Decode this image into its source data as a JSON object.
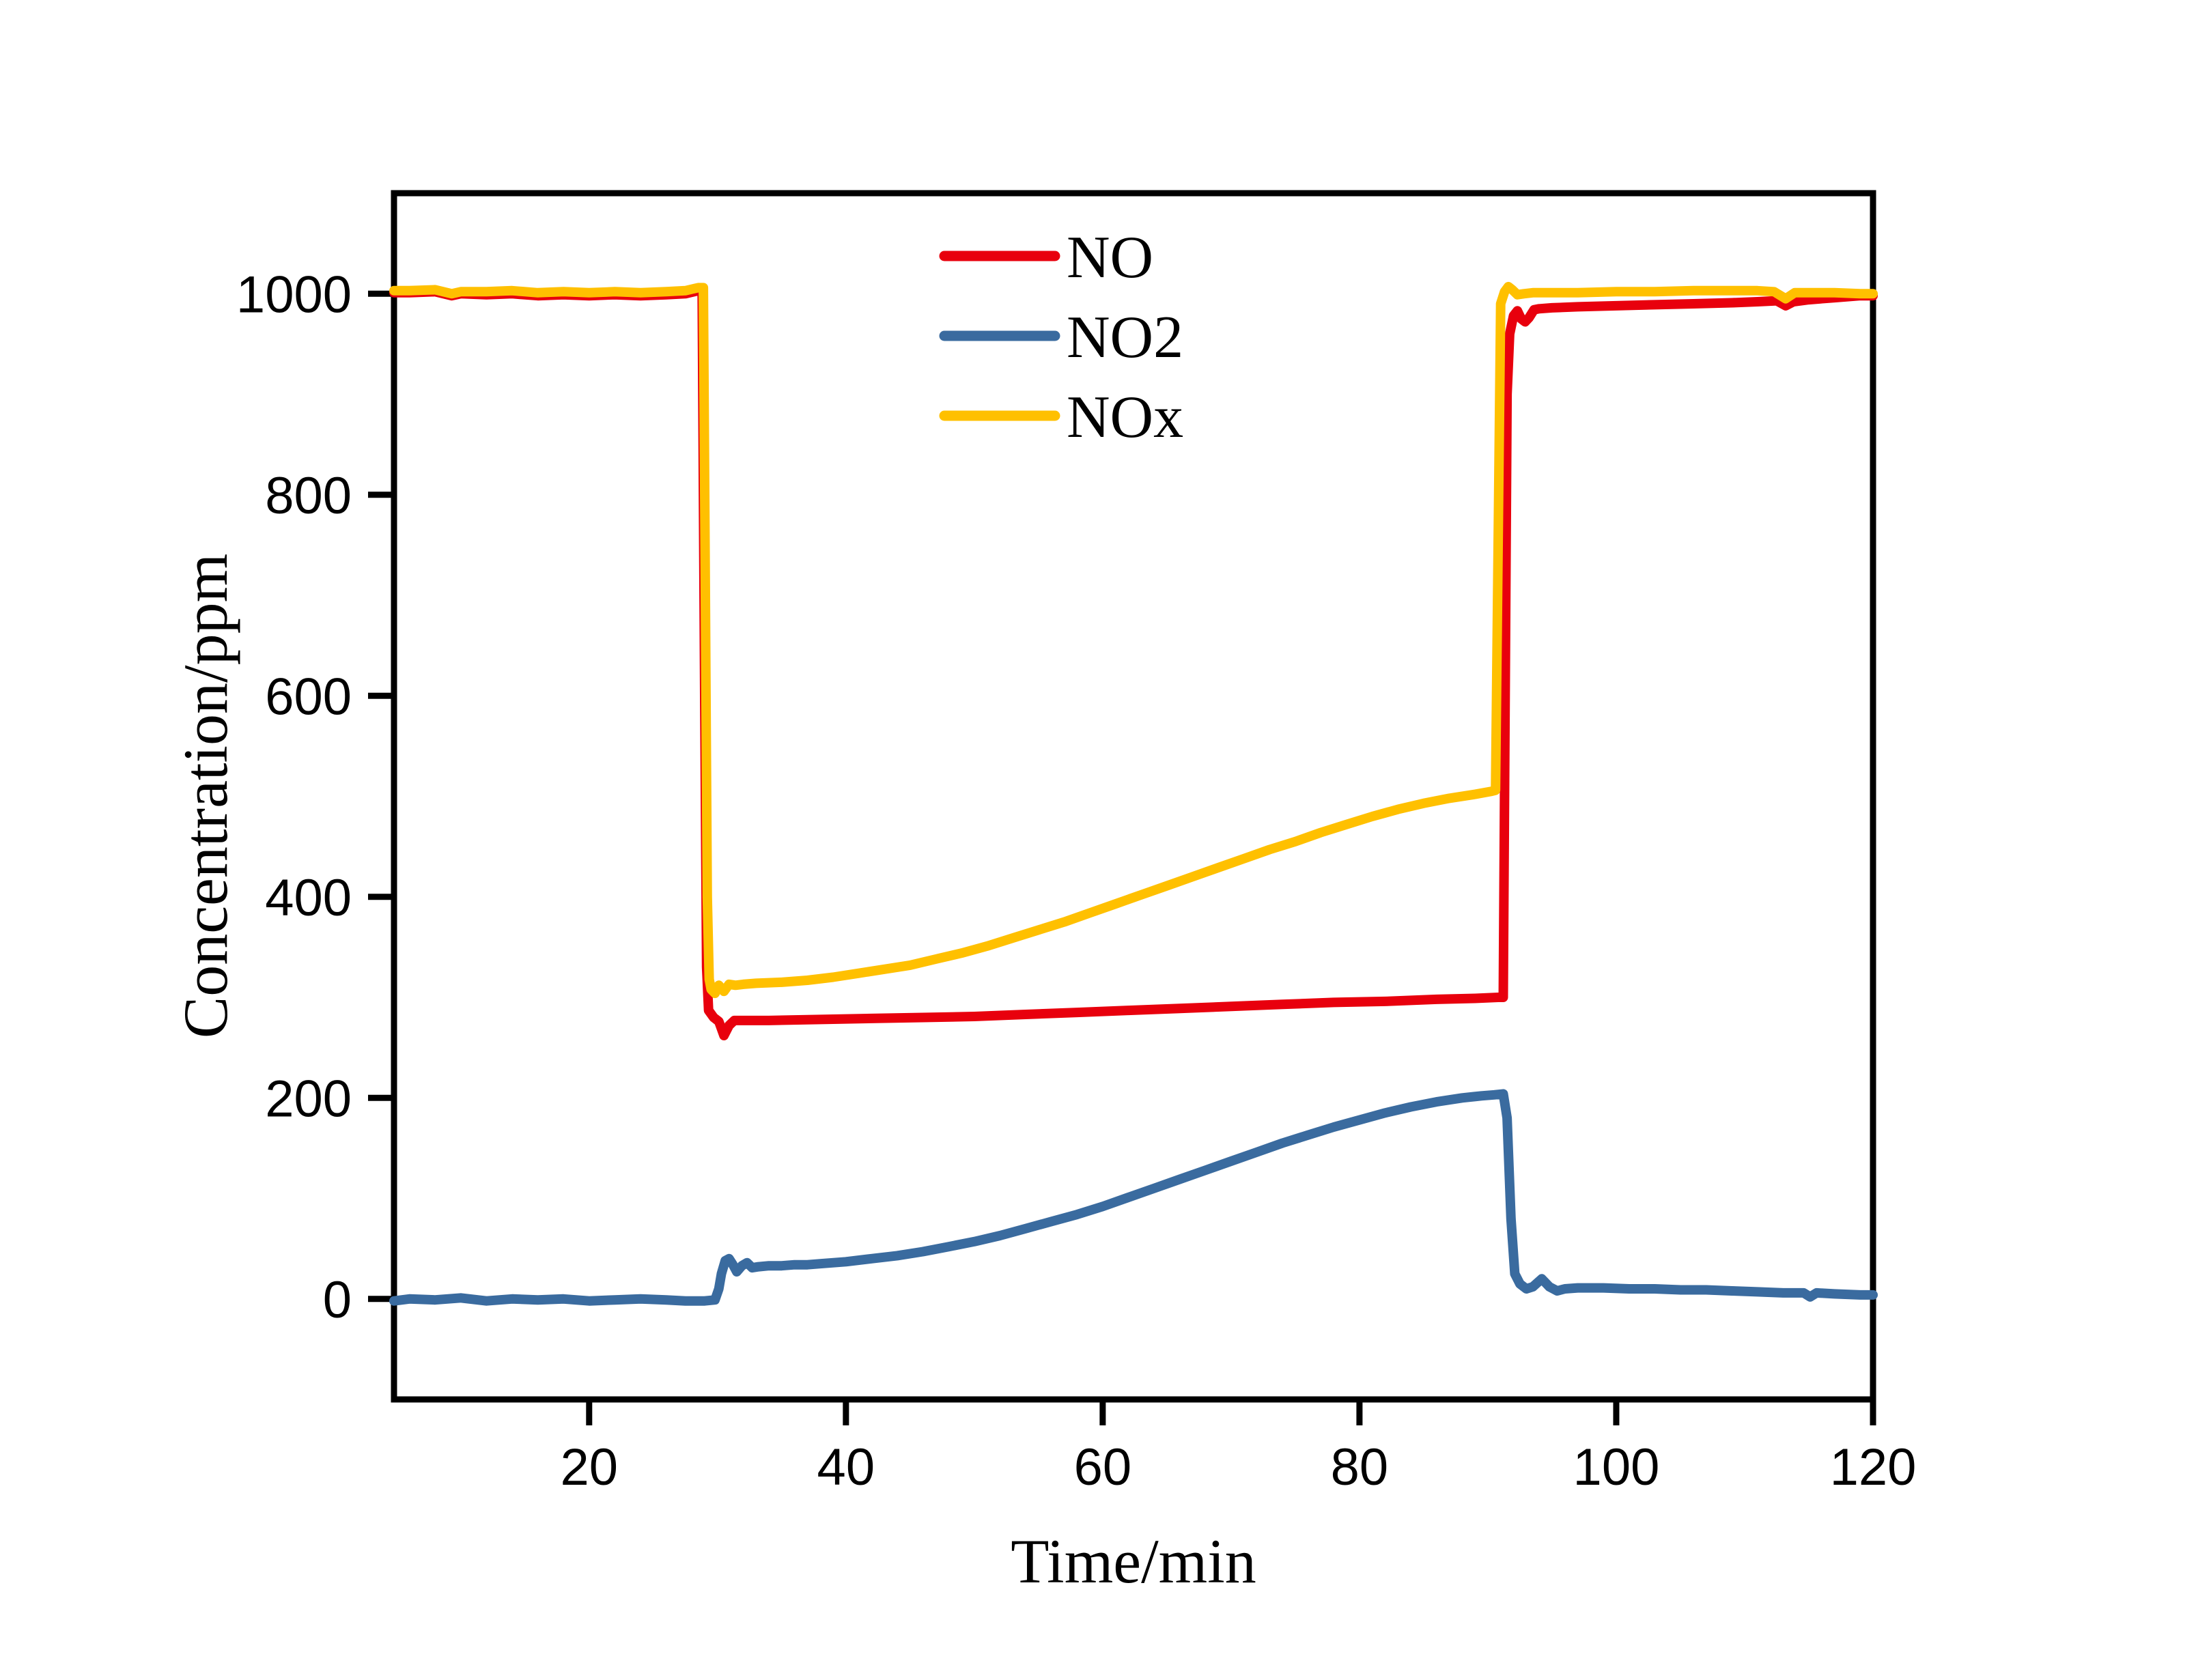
{
  "figure": {
    "background": "#ffffff",
    "frame_color": "#000000"
  },
  "chart_data": {
    "type": "line",
    "title": "",
    "xlabel": "Time/min",
    "ylabel": "Concentration/ppm",
    "x_range": [
      4.8,
      120
    ],
    "y_range": [
      -100,
      1100
    ],
    "x_ticks": [
      20,
      40,
      60,
      80,
      100,
      120
    ],
    "y_ticks": [
      0,
      200,
      400,
      600,
      800,
      1000
    ],
    "grid": false,
    "legend_position": "top-center-inside",
    "series": [
      {
        "name": "NO",
        "color": "#E8000D",
        "points": [
          [
            4.8,
            1001
          ],
          [
            6,
            1001
          ],
          [
            8,
            1002
          ],
          [
            9.3,
            998
          ],
          [
            10,
            1000
          ],
          [
            12,
            999
          ],
          [
            14,
            1000
          ],
          [
            16,
            998
          ],
          [
            18,
            999
          ],
          [
            20,
            998
          ],
          [
            22,
            999
          ],
          [
            24,
            998
          ],
          [
            26,
            999
          ],
          [
            27.5,
            1000
          ],
          [
            28.5,
            1003
          ],
          [
            28.8,
            1003
          ],
          [
            29.0,
            600
          ],
          [
            29.15,
            330
          ],
          [
            29.3,
            287
          ],
          [
            29.7,
            280
          ],
          [
            30.1,
            276
          ],
          [
            30.5,
            262
          ],
          [
            30.9,
            272
          ],
          [
            31.3,
            277
          ],
          [
            32,
            277
          ],
          [
            34,
            277
          ],
          [
            38,
            278
          ],
          [
            42,
            279
          ],
          [
            46,
            280
          ],
          [
            50,
            281
          ],
          [
            54,
            283
          ],
          [
            58,
            285
          ],
          [
            62,
            287
          ],
          [
            66,
            289
          ],
          [
            70,
            291
          ],
          [
            74,
            293
          ],
          [
            78,
            295
          ],
          [
            82,
            296
          ],
          [
            86,
            298
          ],
          [
            89,
            299
          ],
          [
            90.8,
            300
          ],
          [
            91.2,
            300
          ],
          [
            91.35,
            600
          ],
          [
            91.5,
            900
          ],
          [
            91.7,
            960
          ],
          [
            92,
            978
          ],
          [
            92.3,
            983
          ],
          [
            92.6,
            975
          ],
          [
            92.9,
            972
          ],
          [
            93.2,
            976
          ],
          [
            93.6,
            984
          ],
          [
            94,
            985
          ],
          [
            95,
            986
          ],
          [
            97,
            987
          ],
          [
            100,
            988
          ],
          [
            103,
            989
          ],
          [
            106,
            990
          ],
          [
            109,
            991
          ],
          [
            111,
            992
          ],
          [
            112.5,
            993
          ],
          [
            113.2,
            988
          ],
          [
            113.8,
            992
          ],
          [
            115,
            994
          ],
          [
            117,
            996
          ],
          [
            119,
            998
          ],
          [
            120,
            998
          ]
        ]
      },
      {
        "name": "NO2",
        "color": "#3A6B9F",
        "points": [
          [
            4.8,
            -2
          ],
          [
            6,
            0
          ],
          [
            8,
            -1
          ],
          [
            10,
            1
          ],
          [
            12,
            -2
          ],
          [
            14,
            0
          ],
          [
            16,
            -1
          ],
          [
            18,
            0
          ],
          [
            20,
            -2
          ],
          [
            22,
            -1
          ],
          [
            24,
            0
          ],
          [
            26,
            -1
          ],
          [
            27.5,
            -2
          ],
          [
            29,
            -2
          ],
          [
            29.8,
            -1
          ],
          [
            30.1,
            10
          ],
          [
            30.3,
            25
          ],
          [
            30.6,
            38
          ],
          [
            30.9,
            40
          ],
          [
            31.2,
            34
          ],
          [
            31.5,
            27
          ],
          [
            31.9,
            33
          ],
          [
            32.3,
            36
          ],
          [
            32.7,
            31
          ],
          [
            33.2,
            32
          ],
          [
            34,
            33
          ],
          [
            35,
            33
          ],
          [
            36,
            34
          ],
          [
            37,
            34
          ],
          [
            38,
            35
          ],
          [
            40,
            37
          ],
          [
            42,
            40
          ],
          [
            44,
            43
          ],
          [
            46,
            47
          ],
          [
            48,
            52
          ],
          [
            50,
            57
          ],
          [
            52,
            63
          ],
          [
            54,
            70
          ],
          [
            56,
            77
          ],
          [
            58,
            84
          ],
          [
            60,
            92
          ],
          [
            62,
            101
          ],
          [
            64,
            110
          ],
          [
            66,
            119
          ],
          [
            68,
            128
          ],
          [
            70,
            137
          ],
          [
            72,
            146
          ],
          [
            74,
            155
          ],
          [
            76,
            163
          ],
          [
            78,
            171
          ],
          [
            80,
            178
          ],
          [
            82,
            185
          ],
          [
            84,
            191
          ],
          [
            86,
            196
          ],
          [
            88,
            200
          ],
          [
            89.5,
            202
          ],
          [
            90.5,
            203
          ],
          [
            91.2,
            204
          ],
          [
            91.5,
            180
          ],
          [
            91.8,
            80
          ],
          [
            92.1,
            25
          ],
          [
            92.5,
            15
          ],
          [
            93,
            10
          ],
          [
            93.5,
            12
          ],
          [
            94.2,
            20
          ],
          [
            94.8,
            12
          ],
          [
            95.4,
            8
          ],
          [
            96,
            10
          ],
          [
            97,
            11
          ],
          [
            99,
            11
          ],
          [
            101,
            10
          ],
          [
            103,
            10
          ],
          [
            105,
            9
          ],
          [
            107,
            9
          ],
          [
            109,
            8
          ],
          [
            111,
            7
          ],
          [
            113,
            6
          ],
          [
            114.6,
            6
          ],
          [
            115.1,
            2
          ],
          [
            115.6,
            6
          ],
          [
            117,
            5
          ],
          [
            119,
            4
          ],
          [
            120,
            4
          ]
        ]
      },
      {
        "name": "NOx",
        "color": "#FFC000",
        "points": [
          [
            4.8,
            1003
          ],
          [
            6,
            1003
          ],
          [
            8,
            1004
          ],
          [
            9.3,
            1000
          ],
          [
            10,
            1002
          ],
          [
            12,
            1002
          ],
          [
            14,
            1003
          ],
          [
            16,
            1001
          ],
          [
            18,
            1002
          ],
          [
            20,
            1001
          ],
          [
            22,
            1002
          ],
          [
            24,
            1001
          ],
          [
            26,
            1002
          ],
          [
            27.5,
            1003
          ],
          [
            28.5,
            1006
          ],
          [
            28.9,
            1006
          ],
          [
            29.05,
            700
          ],
          [
            29.2,
            400
          ],
          [
            29.35,
            318
          ],
          [
            29.5,
            308
          ],
          [
            29.8,
            304
          ],
          [
            30.1,
            312
          ],
          [
            30.5,
            306
          ],
          [
            30.9,
            313
          ],
          [
            31.4,
            312
          ],
          [
            32,
            313
          ],
          [
            33,
            314
          ],
          [
            35,
            315
          ],
          [
            37,
            317
          ],
          [
            39,
            320
          ],
          [
            41,
            324
          ],
          [
            43,
            328
          ],
          [
            45,
            332
          ],
          [
            47,
            338
          ],
          [
            49,
            344
          ],
          [
            51,
            351
          ],
          [
            53,
            359
          ],
          [
            55,
            367
          ],
          [
            57,
            375
          ],
          [
            59,
            384
          ],
          [
            61,
            393
          ],
          [
            63,
            402
          ],
          [
            65,
            411
          ],
          [
            67,
            420
          ],
          [
            69,
            429
          ],
          [
            71,
            438
          ],
          [
            73,
            447
          ],
          [
            75,
            455
          ],
          [
            77,
            464
          ],
          [
            79,
            472
          ],
          [
            81,
            480
          ],
          [
            83,
            487
          ],
          [
            85,
            493
          ],
          [
            87,
            498
          ],
          [
            89,
            502
          ],
          [
            90.3,
            505
          ],
          [
            90.6,
            506
          ],
          [
            90.8,
            750
          ],
          [
            91,
            990
          ],
          [
            91.3,
            1002
          ],
          [
            91.6,
            1007
          ],
          [
            91.9,
            1004
          ],
          [
            92.3,
            999
          ],
          [
            92.8,
            1000
          ],
          [
            93.5,
            1001
          ],
          [
            95,
            1001
          ],
          [
            97,
            1001
          ],
          [
            100,
            1002
          ],
          [
            103,
            1002
          ],
          [
            106,
            1003
          ],
          [
            109,
            1003
          ],
          [
            111,
            1003
          ],
          [
            112.3,
            1002
          ],
          [
            113.2,
            995
          ],
          [
            113.9,
            1001
          ],
          [
            115,
            1001
          ],
          [
            117,
            1001
          ],
          [
            119,
            1000
          ],
          [
            120,
            1000
          ]
        ]
      }
    ]
  }
}
